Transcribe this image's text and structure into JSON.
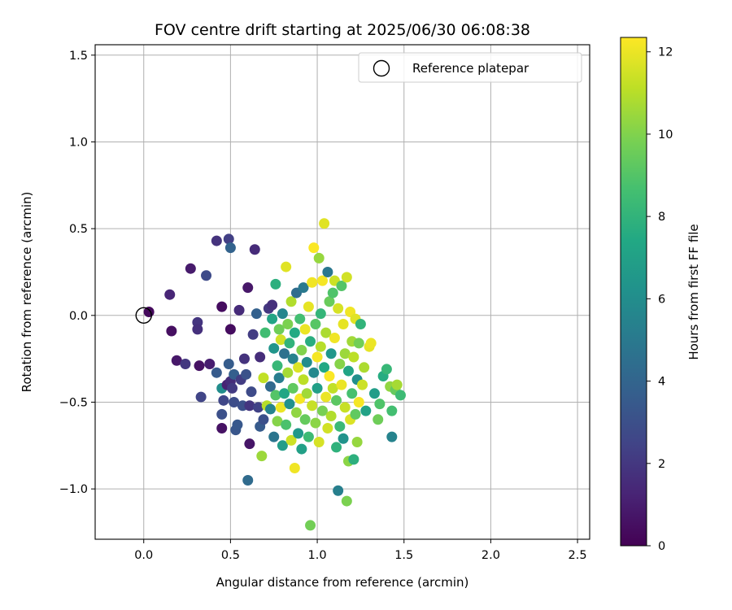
{
  "chart_data": {
    "type": "scatter",
    "title": "FOV centre drift starting at 2025/06/30 06:08:38",
    "xlabel": "Angular distance from reference (arcmin)",
    "ylabel": "Rotation from reference (arcmin)",
    "xlim": [
      -0.28,
      2.57
    ],
    "ylim": [
      -1.29,
      1.56
    ],
    "xticks": [
      0.0,
      0.5,
      1.0,
      1.5,
      2.0,
      2.5
    ],
    "xtick_labels": [
      "0.0",
      "0.5",
      "1.0",
      "1.5",
      "2.0",
      "2.5"
    ],
    "yticks": [
      -1.0,
      -0.5,
      0.0,
      0.5,
      1.0,
      1.5
    ],
    "ytick_labels": [
      "−1.0",
      "−0.5",
      "0.0",
      "0.5",
      "1.0",
      "1.5"
    ],
    "grid": true,
    "legend": {
      "location": "top-right",
      "entries": [
        "Reference platepar"
      ]
    },
    "reference_point": {
      "x": 0.0,
      "y": 0.0,
      "label": "Reference platepar",
      "marker": "open-circle"
    },
    "colorbar": {
      "label": "Hours from first FF file",
      "range": [
        0,
        12.35
      ],
      "ticks": [
        0,
        2,
        4,
        6,
        8,
        10,
        12
      ],
      "tick_labels": [
        "0",
        "2",
        "4",
        "6",
        "8",
        "10",
        "12"
      ],
      "colormap": "viridis"
    },
    "series": [
      {
        "points_x_y_hours": [
          [
            0.03,
            0.02,
            0.3
          ],
          [
            0.15,
            0.12,
            1.3
          ],
          [
            0.16,
            -0.09,
            0.5
          ],
          [
            0.19,
            -0.26,
            0.8
          ],
          [
            0.24,
            -0.28,
            2.0
          ],
          [
            0.27,
            0.27,
            0.9
          ],
          [
            0.31,
            -0.04,
            1.9
          ],
          [
            0.31,
            -0.08,
            1.7
          ],
          [
            0.32,
            -0.29,
            0.6
          ],
          [
            0.33,
            -0.47,
            2.5
          ],
          [
            0.36,
            0.23,
            2.8
          ],
          [
            0.38,
            -0.28,
            1.0
          ],
          [
            0.42,
            0.43,
            1.8
          ],
          [
            0.42,
            -0.33,
            3.5
          ],
          [
            0.45,
            0.05,
            0.4
          ],
          [
            0.45,
            -0.42,
            6.0
          ],
          [
            0.45,
            -0.57,
            3.0
          ],
          [
            0.45,
            -0.65,
            0.6
          ],
          [
            0.46,
            -0.49,
            2.6
          ],
          [
            0.48,
            -0.4,
            1.2
          ],
          [
            0.49,
            0.44,
            2.3
          ],
          [
            0.49,
            -0.28,
            3.6
          ],
          [
            0.5,
            0.39,
            3.9
          ],
          [
            0.5,
            -0.08,
            0.4
          ],
          [
            0.5,
            -0.38,
            1.6
          ],
          [
            0.51,
            -0.42,
            2.1
          ],
          [
            0.52,
            -0.34,
            3.7
          ],
          [
            0.52,
            -0.5,
            2.9
          ],
          [
            0.53,
            -0.66,
            3.3
          ],
          [
            0.54,
            -0.63,
            3.4
          ],
          [
            0.55,
            0.03,
            1.5
          ],
          [
            0.56,
            -0.37,
            2.2
          ],
          [
            0.57,
            -0.52,
            3.0
          ],
          [
            0.58,
            -0.25,
            1.8
          ],
          [
            0.59,
            -0.34,
            3.1
          ],
          [
            0.6,
            0.16,
            0.8
          ],
          [
            0.6,
            -0.95,
            4.3
          ],
          [
            0.61,
            -0.74,
            0.7
          ],
          [
            0.61,
            -0.52,
            1.9
          ],
          [
            0.62,
            -0.44,
            2.8
          ],
          [
            0.63,
            -0.11,
            2.2
          ],
          [
            0.64,
            0.38,
            1.5
          ],
          [
            0.65,
            0.01,
            3.8
          ],
          [
            0.66,
            -0.53,
            2.4
          ],
          [
            0.67,
            -0.64,
            3.5
          ],
          [
            0.67,
            -0.24,
            1.6
          ],
          [
            0.68,
            -0.81,
            10.5
          ],
          [
            0.69,
            -0.36,
            11.2
          ],
          [
            0.69,
            -0.6,
            3.0
          ],
          [
            0.7,
            -0.1,
            8.5
          ],
          [
            0.71,
            -0.52,
            11.0
          ],
          [
            0.72,
            0.04,
            2.0
          ],
          [
            0.73,
            -0.41,
            4.2
          ],
          [
            0.73,
            -0.54,
            5.5
          ],
          [
            0.74,
            -0.02,
            7.2
          ],
          [
            0.74,
            0.06,
            1.7
          ],
          [
            0.75,
            -0.7,
            4.8
          ],
          [
            0.75,
            -0.19,
            6.4
          ],
          [
            0.76,
            0.18,
            7.8
          ],
          [
            0.76,
            -0.46,
            9.0
          ],
          [
            0.77,
            -0.29,
            8.2
          ],
          [
            0.77,
            -0.61,
            10.1
          ],
          [
            0.78,
            -0.08,
            9.6
          ],
          [
            0.78,
            -0.36,
            5.2
          ],
          [
            0.79,
            -0.14,
            11.5
          ],
          [
            0.79,
            -0.53,
            12.0
          ],
          [
            0.8,
            -0.75,
            6.8
          ],
          [
            0.8,
            0.01,
            5.6
          ],
          [
            0.81,
            -0.22,
            4.6
          ],
          [
            0.81,
            -0.45,
            7.3
          ],
          [
            0.82,
            0.28,
            11.8
          ],
          [
            0.82,
            -0.63,
            8.8
          ],
          [
            0.83,
            -0.05,
            9.9
          ],
          [
            0.83,
            -0.33,
            10.7
          ],
          [
            0.84,
            -0.51,
            6.2
          ],
          [
            0.84,
            -0.16,
            8.0
          ],
          [
            0.85,
            0.08,
            10.9
          ],
          [
            0.85,
            -0.72,
            11.4
          ],
          [
            0.86,
            -0.25,
            5.4
          ],
          [
            0.86,
            -0.42,
            9.3
          ],
          [
            0.87,
            -0.88,
            12.1
          ],
          [
            0.87,
            -0.1,
            7.5
          ],
          [
            0.88,
            -0.56,
            10.3
          ],
          [
            0.88,
            0.13,
            4.4
          ],
          [
            0.89,
            -0.3,
            11.7
          ],
          [
            0.89,
            -0.68,
            6.6
          ],
          [
            0.9,
            -0.02,
            8.6
          ],
          [
            0.9,
            -0.48,
            12.2
          ],
          [
            0.91,
            -0.2,
            10.0
          ],
          [
            0.91,
            -0.77,
            7.0
          ],
          [
            0.92,
            0.16,
            5.0
          ],
          [
            0.92,
            -0.37,
            11.1
          ],
          [
            0.93,
            -0.6,
            9.4
          ],
          [
            0.93,
            -0.08,
            12.0
          ],
          [
            0.94,
            -0.27,
            6.0
          ],
          [
            0.94,
            -0.45,
            10.6
          ],
          [
            0.95,
            0.05,
            11.9
          ],
          [
            0.95,
            -0.7,
            8.4
          ],
          [
            0.96,
            -1.21,
            9.7
          ],
          [
            0.96,
            -0.15,
            7.7
          ],
          [
            0.97,
            -0.52,
            11.3
          ],
          [
            0.97,
            0.19,
            12.1
          ],
          [
            0.98,
            -0.33,
            5.8
          ],
          [
            0.98,
            0.39,
            12.3
          ],
          [
            0.99,
            -0.62,
            10.2
          ],
          [
            0.99,
            -0.05,
            9.1
          ],
          [
            1.0,
            -0.24,
            12.2
          ],
          [
            1.0,
            -0.42,
            6.9
          ],
          [
            1.01,
            0.33,
            10.4
          ],
          [
            1.01,
            -0.73,
            11.6
          ],
          [
            1.02,
            0.01,
            8.1
          ],
          [
            1.02,
            -0.18,
            11.0
          ],
          [
            1.03,
            -0.55,
            9.8
          ],
          [
            1.03,
            0.2,
            12.2
          ],
          [
            1.04,
            0.53,
            11.8
          ],
          [
            1.04,
            -0.3,
            7.4
          ],
          [
            1.05,
            -0.47,
            12.0
          ],
          [
            1.05,
            -0.1,
            10.8
          ],
          [
            1.06,
            0.25,
            4.9
          ],
          [
            1.06,
            -0.65,
            11.5
          ],
          [
            1.07,
            -0.35,
            12.3
          ],
          [
            1.07,
            0.08,
            9.5
          ],
          [
            1.08,
            -0.22,
            6.5
          ],
          [
            1.08,
            -0.58,
            10.9
          ],
          [
            1.09,
            0.13,
            8.9
          ],
          [
            1.09,
            -0.42,
            11.2
          ],
          [
            1.1,
            0.2,
            11.4
          ],
          [
            1.1,
            -0.13,
            12.1
          ],
          [
            1.11,
            -0.76,
            7.9
          ],
          [
            1.11,
            -0.49,
            9.2
          ],
          [
            1.12,
            -1.01,
            5.3
          ],
          [
            1.12,
            0.04,
            11.6
          ],
          [
            1.13,
            -0.28,
            10.1
          ],
          [
            1.13,
            -0.64,
            8.3
          ],
          [
            1.14,
            0.17,
            9.0
          ],
          [
            1.14,
            -0.4,
            12.0
          ],
          [
            1.15,
            -0.05,
            11.9
          ],
          [
            1.15,
            -0.71,
            6.3
          ],
          [
            1.16,
            -0.22,
            10.5
          ],
          [
            1.16,
            -0.53,
            11.3
          ],
          [
            1.17,
            -1.07,
            9.9
          ],
          [
            1.17,
            0.22,
            11.5
          ],
          [
            1.18,
            -0.84,
            10.2
          ],
          [
            1.18,
            -0.32,
            7.2
          ],
          [
            1.19,
            0.02,
            12.1
          ],
          [
            1.19,
            -0.6,
            11.7
          ],
          [
            1.2,
            -0.15,
            10.6
          ],
          [
            1.2,
            -0.45,
            8.7
          ],
          [
            1.21,
            -0.83,
            7.8
          ],
          [
            1.21,
            -0.24,
            11.1
          ],
          [
            1.22,
            -0.57,
            9.3
          ],
          [
            1.22,
            -0.02,
            11.8
          ],
          [
            1.23,
            -0.73,
            10.4
          ],
          [
            1.23,
            -0.37,
            6.1
          ],
          [
            1.24,
            -0.16,
            9.7
          ],
          [
            1.24,
            -0.5,
            12.2
          ],
          [
            1.25,
            -0.05,
            8.0
          ],
          [
            1.26,
            -0.4,
            11.4
          ],
          [
            1.27,
            -0.3,
            10.8
          ],
          [
            1.28,
            -0.55,
            7.1
          ],
          [
            1.3,
            -0.18,
            11.9
          ],
          [
            1.31,
            -0.16,
            12.0
          ],
          [
            1.33,
            -0.45,
            6.8
          ],
          [
            1.35,
            -0.6,
            9.6
          ],
          [
            1.36,
            -0.51,
            8.9
          ],
          [
            1.38,
            -0.35,
            7.6
          ],
          [
            1.4,
            -0.31,
            8.2
          ],
          [
            1.42,
            -0.41,
            10.3
          ],
          [
            1.43,
            -0.55,
            8.6
          ],
          [
            1.43,
            -0.7,
            5.5
          ],
          [
            1.45,
            -0.43,
            9.4
          ],
          [
            1.46,
            -0.4,
            10.7
          ],
          [
            1.48,
            -0.46,
            8.4
          ]
        ]
      }
    ]
  }
}
